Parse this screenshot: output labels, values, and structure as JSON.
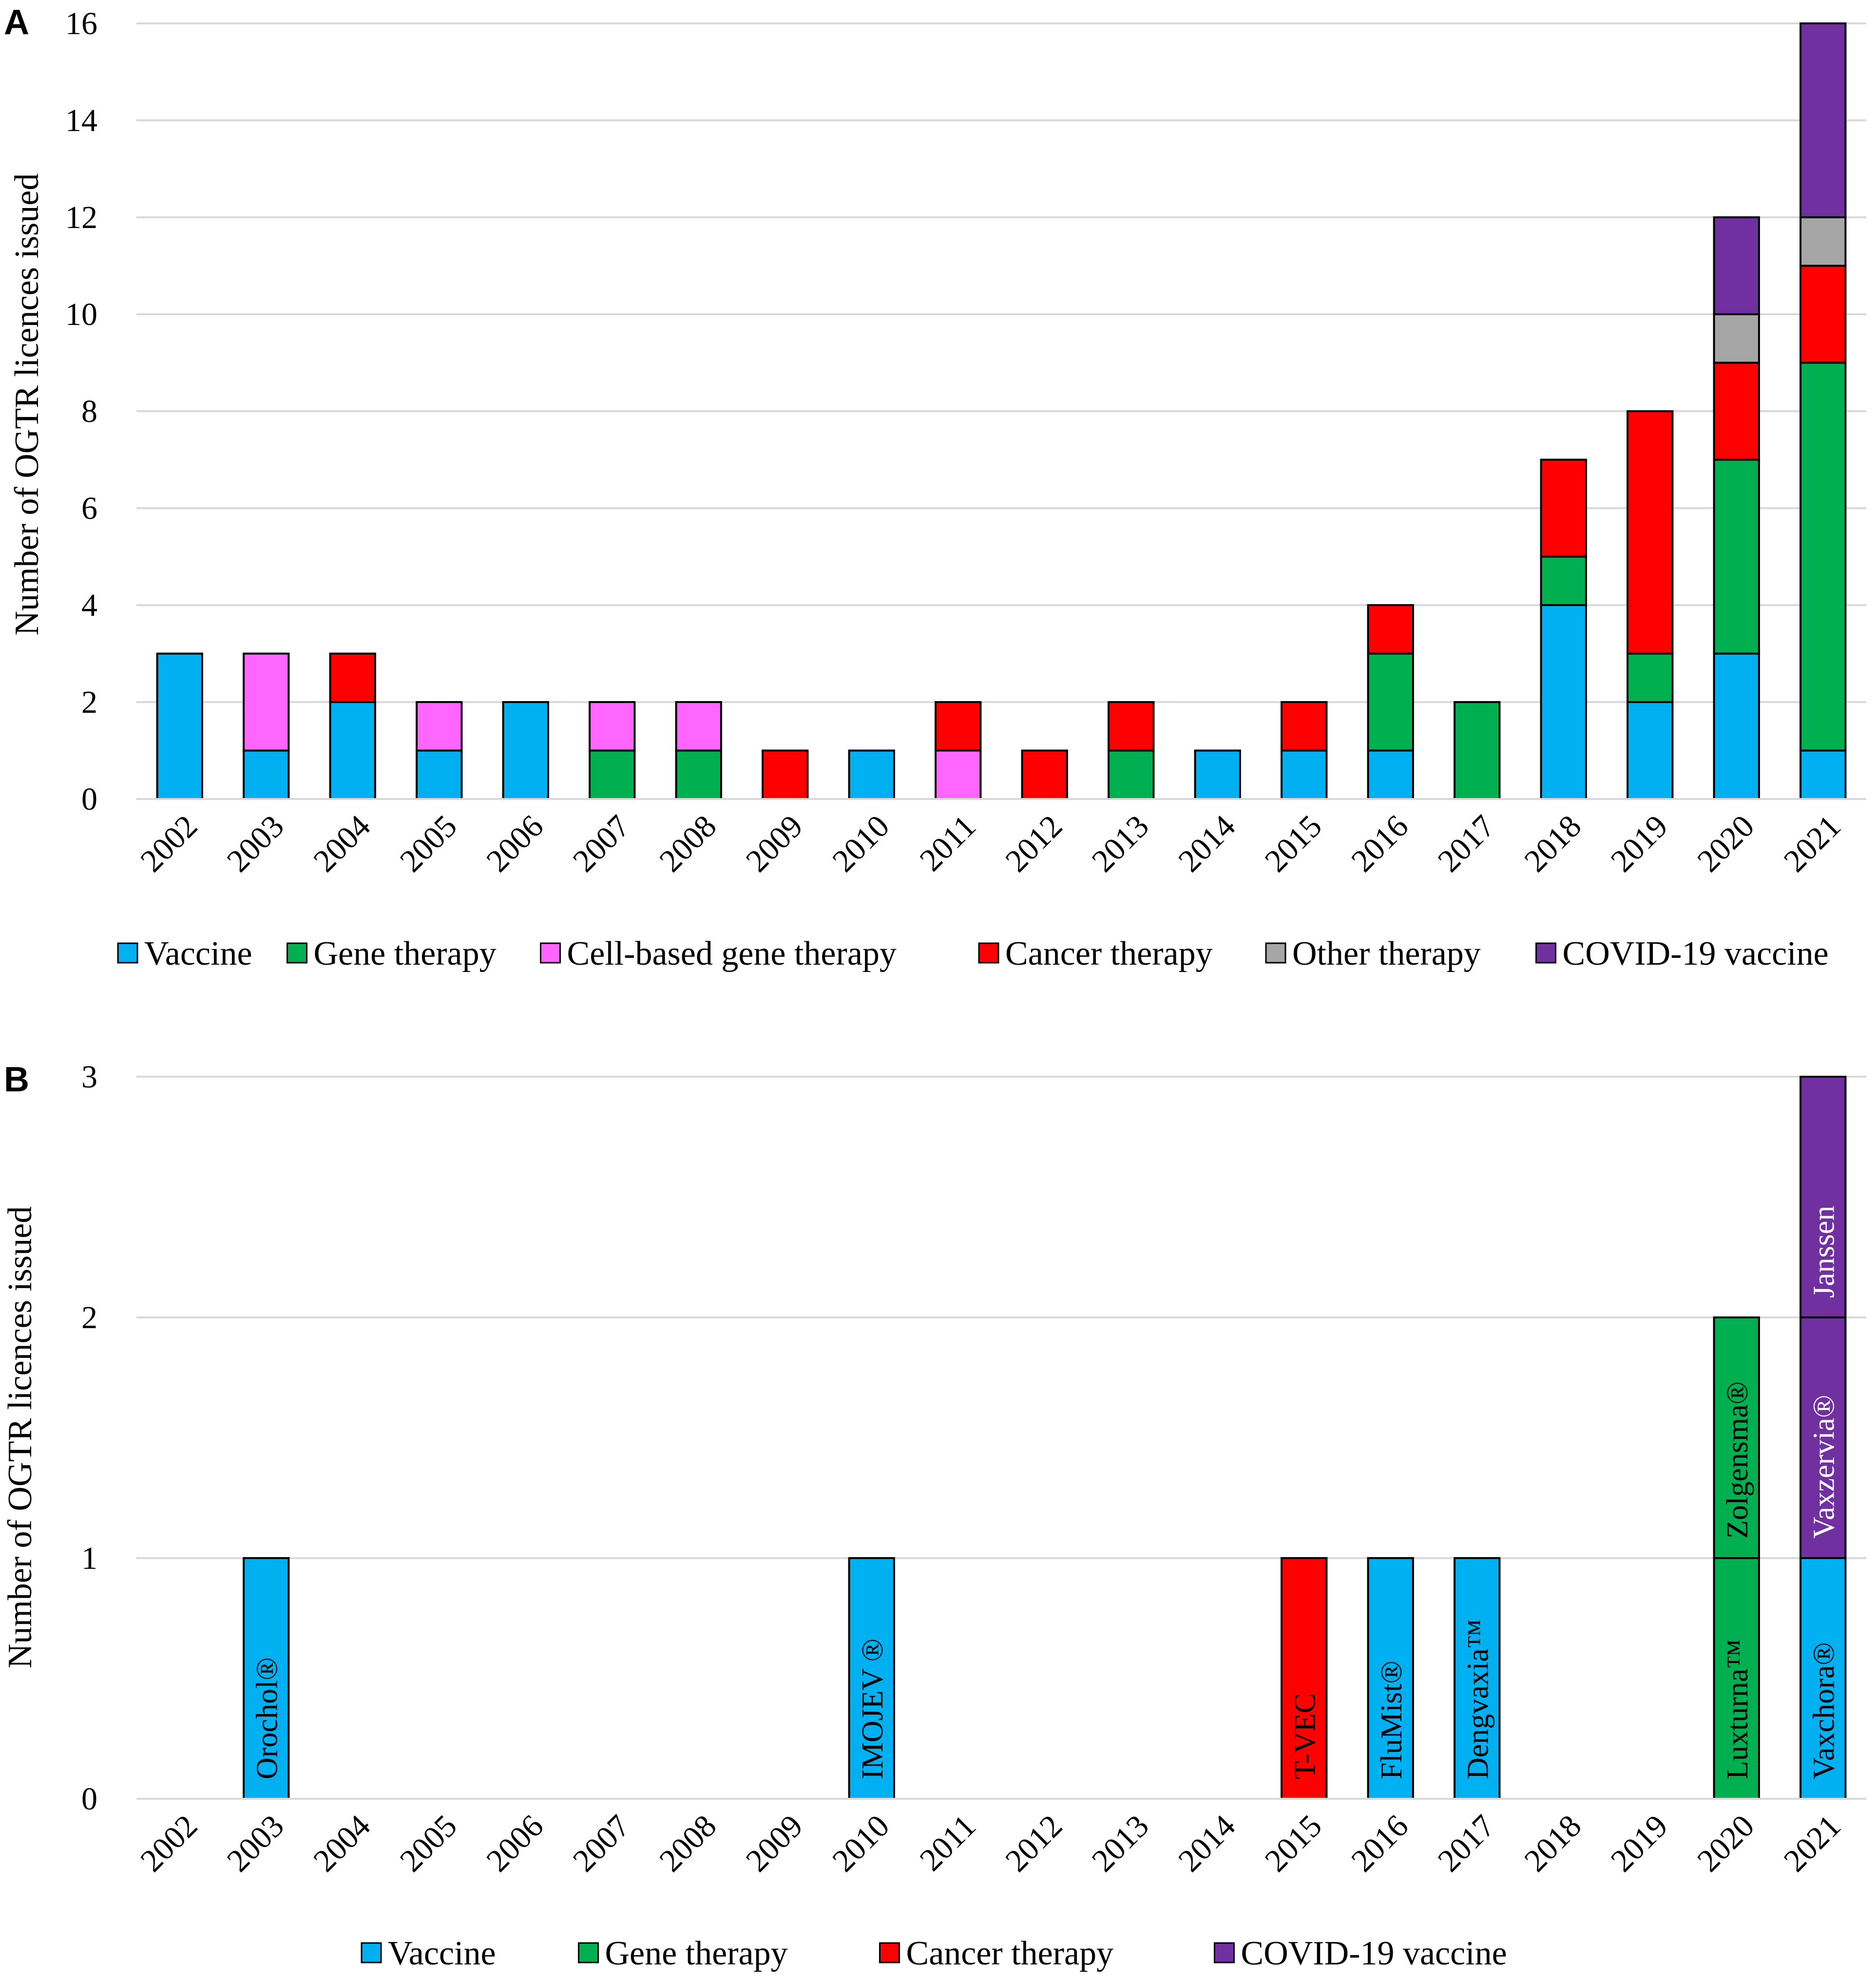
{
  "colors": {
    "Vaccine": "#00b0f0",
    "Gene therapy": "#00b050",
    "Cell-based gene therapy": "#ff66ff",
    "Cancer therapy": "#ff0000",
    "Other therapy": "#a6a6a6",
    "COVID-19 vaccine": "#7030a0"
  },
  "chart_data": [
    {
      "panel": "A",
      "type": "bar",
      "stacked": true,
      "ylabel": "Number of OGTR licences issued",
      "xlabel": "",
      "ylim": [
        0,
        16
      ],
      "yticks": [
        0,
        2,
        4,
        6,
        8,
        10,
        12,
        14,
        16
      ],
      "grid": true,
      "legend_position": "bottom",
      "categories": [
        "2002",
        "2003",
        "2004",
        "2005",
        "2006",
        "2007",
        "2008",
        "2009",
        "2010",
        "2011",
        "2012",
        "2013",
        "2014",
        "2015",
        "2016",
        "2017",
        "2018",
        "2019",
        "2020",
        "2021"
      ],
      "series": [
        {
          "name": "Vaccine",
          "values": [
            3,
            1,
            2,
            1,
            2,
            0,
            0,
            0,
            1,
            0,
            0,
            0,
            1,
            1,
            1,
            0,
            4,
            2,
            3,
            1
          ]
        },
        {
          "name": "Gene therapy",
          "values": [
            0,
            0,
            0,
            0,
            0,
            1,
            1,
            0,
            0,
            0,
            0,
            1,
            0,
            0,
            2,
            2,
            1,
            1,
            4,
            8
          ]
        },
        {
          "name": "Cell-based gene therapy",
          "values": [
            0,
            2,
            0,
            1,
            0,
            1,
            1,
            0,
            0,
            1,
            0,
            0,
            0,
            0,
            0,
            0,
            0,
            0,
            0,
            0
          ]
        },
        {
          "name": "Cancer therapy",
          "values": [
            0,
            0,
            1,
            0,
            0,
            0,
            0,
            1,
            0,
            1,
            1,
            1,
            0,
            1,
            1,
            0,
            2,
            5,
            2,
            2
          ]
        },
        {
          "name": "Other therapy",
          "values": [
            0,
            0,
            0,
            0,
            0,
            0,
            0,
            0,
            0,
            0,
            0,
            0,
            0,
            0,
            0,
            0,
            0,
            0,
            1,
            1
          ]
        },
        {
          "name": "COVID-19 vaccine",
          "values": [
            0,
            0,
            0,
            0,
            0,
            0,
            0,
            0,
            0,
            0,
            0,
            0,
            0,
            0,
            0,
            0,
            0,
            0,
            2,
            4
          ]
        }
      ]
    },
    {
      "panel": "B",
      "type": "bar",
      "stacked": true,
      "ylabel": "Number of OGTR licences issued",
      "xlabel": "",
      "ylim": [
        0,
        3
      ],
      "yticks": [
        0,
        1,
        2,
        3
      ],
      "grid": true,
      "legend_position": "bottom",
      "categories": [
        "2002",
        "2003",
        "2004",
        "2005",
        "2006",
        "2007",
        "2008",
        "2009",
        "2010",
        "2011",
        "2012",
        "2013",
        "2014",
        "2015",
        "2016",
        "2017",
        "2018",
        "2019",
        "2020",
        "2021"
      ],
      "series": [
        {
          "name": "Vaccine"
        },
        {
          "name": "Gene therapy"
        },
        {
          "name": "Cancer therapy"
        },
        {
          "name": "COVID-19 vaccine"
        }
      ],
      "stacks": [
        {
          "year": "2003",
          "segments": [
            {
              "series": "Vaccine",
              "label": "Orochol®"
            }
          ]
        },
        {
          "year": "2010",
          "segments": [
            {
              "series": "Vaccine",
              "label": "IMOJEV ®"
            }
          ]
        },
        {
          "year": "2015",
          "segments": [
            {
              "series": "Cancer therapy",
              "label": "T-VEC"
            }
          ]
        },
        {
          "year": "2016",
          "segments": [
            {
              "series": "Vaccine",
              "label": "FluMist®"
            }
          ]
        },
        {
          "year": "2017",
          "segments": [
            {
              "series": "Vaccine",
              "label": "Dengvaxia™"
            }
          ]
        },
        {
          "year": "2020",
          "segments": [
            {
              "series": "Gene therapy",
              "label": "Luxturna™"
            },
            {
              "series": "Gene therapy",
              "label": "Zolgensma®"
            }
          ]
        },
        {
          "year": "2021",
          "segments": [
            {
              "series": "Vaccine",
              "label": "Vaxchora®"
            },
            {
              "series": "COVID-19 vaccine",
              "label": "Vaxzervia®"
            },
            {
              "series": "COVID-19 vaccine",
              "label": "Janssen"
            }
          ]
        }
      ]
    }
  ]
}
